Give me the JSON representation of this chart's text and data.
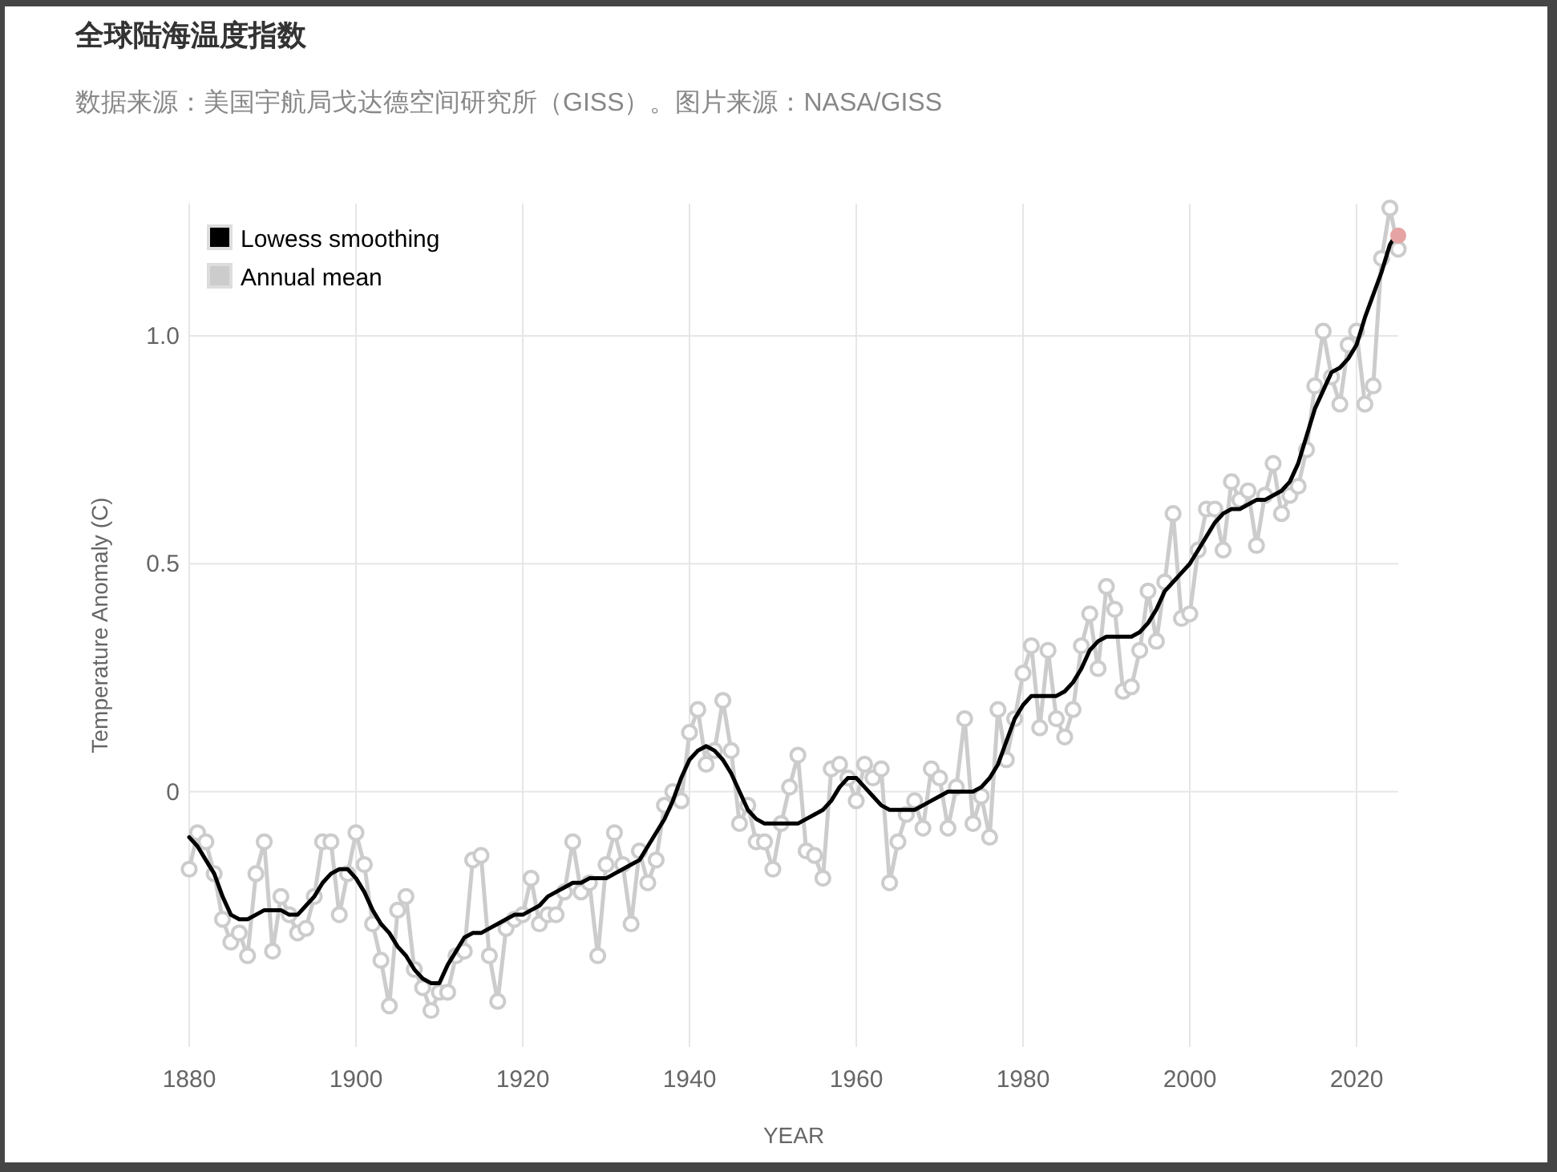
{
  "chart_data": {
    "type": "line",
    "title": "全球陆海温度指数",
    "subtitle": "数据来源：美国宇航局戈达德空间研究所（GISS）。图片来源：NASA/GISS",
    "xlabel": "YEAR",
    "ylabel": "Temperature Anomaly (C)",
    "x": [
      1880,
      1881,
      1882,
      1883,
      1884,
      1885,
      1886,
      1887,
      1888,
      1889,
      1890,
      1891,
      1892,
      1893,
      1894,
      1895,
      1896,
      1897,
      1898,
      1899,
      1900,
      1901,
      1902,
      1903,
      1904,
      1905,
      1906,
      1907,
      1908,
      1909,
      1910,
      1911,
      1912,
      1913,
      1914,
      1915,
      1916,
      1917,
      1918,
      1919,
      1920,
      1921,
      1922,
      1923,
      1924,
      1925,
      1926,
      1927,
      1928,
      1929,
      1930,
      1931,
      1932,
      1933,
      1934,
      1935,
      1936,
      1937,
      1938,
      1939,
      1940,
      1941,
      1942,
      1943,
      1944,
      1945,
      1946,
      1947,
      1948,
      1949,
      1950,
      1951,
      1952,
      1953,
      1954,
      1955,
      1956,
      1957,
      1958,
      1959,
      1960,
      1961,
      1962,
      1963,
      1964,
      1965,
      1966,
      1967,
      1968,
      1969,
      1970,
      1971,
      1972,
      1973,
      1974,
      1975,
      1976,
      1977,
      1978,
      1979,
      1980,
      1981,
      1982,
      1983,
      1984,
      1985,
      1986,
      1987,
      1988,
      1989,
      1990,
      1991,
      1992,
      1993,
      1994,
      1995,
      1996,
      1997,
      1998,
      1999,
      2000,
      2001,
      2002,
      2003,
      2004,
      2005,
      2006,
      2007,
      2008,
      2009,
      2010,
      2011,
      2012,
      2013,
      2014,
      2015,
      2016,
      2017,
      2018,
      2019,
      2020,
      2021,
      2022,
      2023,
      2024,
      2025
    ],
    "series": [
      {
        "name": "Lowess smoothing",
        "marker": "none",
        "color": "#000000",
        "values": [
          -0.1,
          -0.12,
          -0.15,
          -0.18,
          -0.23,
          -0.27,
          -0.28,
          -0.28,
          -0.27,
          -0.26,
          -0.26,
          -0.26,
          -0.27,
          -0.27,
          -0.25,
          -0.23,
          -0.2,
          -0.18,
          -0.17,
          -0.17,
          -0.19,
          -0.22,
          -0.26,
          -0.29,
          -0.31,
          -0.34,
          -0.36,
          -0.39,
          -0.41,
          -0.42,
          -0.42,
          -0.38,
          -0.35,
          -0.32,
          -0.31,
          -0.31,
          -0.3,
          -0.29,
          -0.28,
          -0.27,
          -0.27,
          -0.26,
          -0.25,
          -0.23,
          -0.22,
          -0.21,
          -0.2,
          -0.2,
          -0.19,
          -0.19,
          -0.19,
          -0.18,
          -0.17,
          -0.16,
          -0.15,
          -0.12,
          -0.09,
          -0.06,
          -0.02,
          0.03,
          0.07,
          0.09,
          0.1,
          0.09,
          0.07,
          0.04,
          0.0,
          -0.04,
          -0.06,
          -0.07,
          -0.07,
          -0.07,
          -0.07,
          -0.07,
          -0.06,
          -0.05,
          -0.04,
          -0.02,
          0.01,
          0.03,
          0.03,
          0.01,
          -0.01,
          -0.03,
          -0.04,
          -0.04,
          -0.04,
          -0.04,
          -0.03,
          -0.02,
          -0.01,
          0.0,
          0.0,
          0.0,
          0.0,
          0.01,
          0.03,
          0.06,
          0.11,
          0.16,
          0.19,
          0.21,
          0.21,
          0.21,
          0.21,
          0.22,
          0.24,
          0.27,
          0.31,
          0.33,
          0.34,
          0.34,
          0.34,
          0.34,
          0.35,
          0.37,
          0.4,
          0.44,
          0.46,
          0.48,
          0.5,
          0.53,
          0.56,
          0.59,
          0.61,
          0.62,
          0.62,
          0.63,
          0.64,
          0.64,
          0.65,
          0.66,
          0.68,
          0.72,
          0.78,
          0.84,
          0.88,
          0.92,
          0.93,
          0.95,
          0.98,
          1.04,
          1.09,
          1.14,
          1.2,
          1.23
        ]
      },
      {
        "name": "Annual mean",
        "marker": "circle",
        "color": "#cccccc",
        "values": [
          -0.17,
          -0.09,
          -0.11,
          -0.18,
          -0.28,
          -0.33,
          -0.31,
          -0.36,
          -0.18,
          -0.11,
          -0.35,
          -0.23,
          -0.27,
          -0.31,
          -0.3,
          -0.23,
          -0.11,
          -0.11,
          -0.27,
          -0.18,
          -0.09,
          -0.16,
          -0.29,
          -0.37,
          -0.47,
          -0.26,
          -0.23,
          -0.39,
          -0.43,
          -0.48,
          -0.44,
          -0.44,
          -0.36,
          -0.35,
          -0.15,
          -0.14,
          -0.36,
          -0.46,
          -0.3,
          -0.28,
          -0.27,
          -0.19,
          -0.29,
          -0.27,
          -0.27,
          -0.22,
          -0.11,
          -0.22,
          -0.2,
          -0.36,
          -0.16,
          -0.09,
          -0.16,
          -0.29,
          -0.13,
          -0.2,
          -0.15,
          -0.03,
          0.0,
          -0.02,
          0.13,
          0.18,
          0.06,
          0.09,
          0.2,
          0.09,
          -0.07,
          -0.03,
          -0.11,
          -0.11,
          -0.17,
          -0.07,
          0.01,
          0.08,
          -0.13,
          -0.14,
          -0.19,
          0.05,
          0.06,
          0.03,
          -0.02,
          0.06,
          0.03,
          0.05,
          -0.2,
          -0.11,
          -0.05,
          -0.02,
          -0.08,
          0.05,
          0.03,
          -0.08,
          0.01,
          0.16,
          -0.07,
          -0.01,
          -0.1,
          0.18,
          0.07,
          0.16,
          0.26,
          0.32,
          0.14,
          0.31,
          0.16,
          0.12,
          0.18,
          0.32,
          0.39,
          0.27,
          0.45,
          0.4,
          0.22,
          0.23,
          0.31,
          0.44,
          0.33,
          0.46,
          0.61,
          0.38,
          0.39,
          0.53,
          0.62,
          0.62,
          0.53,
          0.68,
          0.64,
          0.66,
          0.54,
          0.65,
          0.72,
          0.61,
          0.65,
          0.67,
          0.75,
          0.89,
          1.01,
          0.91,
          0.85,
          0.98,
          1.01,
          0.85,
          0.89,
          1.17,
          1.28,
          1.19
        ]
      },
      {
        "type": "scatter",
        "marker": "circle",
        "color": "#e6a3a3",
        "x": [
          2025
        ],
        "values": [
          1.22
        ]
      }
    ],
    "xlim": [
      1880,
      2025
    ],
    "ylim": [
      -0.56,
      1.29
    ],
    "xticks": [
      1880,
      1900,
      1920,
      1940,
      1960,
      1980,
      2000,
      2020
    ],
    "yticks": [
      0,
      0.5,
      {
        "value": 1,
        "label": "1.0"
      }
    ],
    "grid": true,
    "legend": "top left"
  }
}
